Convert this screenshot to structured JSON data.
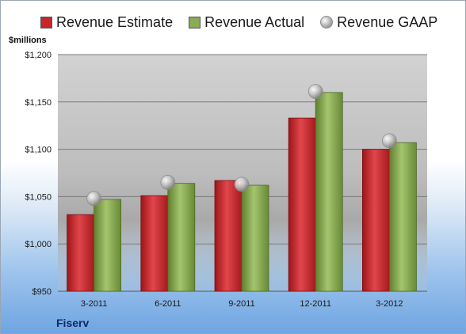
{
  "legend": {
    "estimate": "Revenue Estimate",
    "actual": "Revenue Actual",
    "gaap": "Revenue GAAP"
  },
  "unit_label": "$millions",
  "company": "Fiserv",
  "colors": {
    "estimate": "#c8262b",
    "actual": "#8aac52",
    "gaap": "#b8b8b8",
    "plot_background": "#c9c9c9",
    "axis_text": "#1a1a1a"
  },
  "chart_data": {
    "type": "bar",
    "categories": [
      "3-2011",
      "6-2011",
      "9-2011",
      "12-2011",
      "3-2012"
    ],
    "series": [
      {
        "name": "Revenue Estimate",
        "kind": "bar",
        "values": [
          1031,
          1051,
          1067,
          1133,
          1100
        ]
      },
      {
        "name": "Revenue Actual",
        "kind": "bar",
        "values": [
          1047,
          1064,
          1062,
          1160,
          1107
        ]
      },
      {
        "name": "Revenue GAAP",
        "kind": "marker",
        "values": [
          1048,
          1065,
          1063,
          1161,
          1109
        ]
      }
    ],
    "ylabel": "$millions",
    "ylim": [
      950,
      1200
    ],
    "yticks": [
      950,
      1000,
      1050,
      1100,
      1150,
      1200
    ],
    "ytick_labels": [
      "$950",
      "$1,000",
      "$1,050",
      "$1,100",
      "$1,150",
      "$1,200"
    ],
    "grid": true,
    "legend_position": "top"
  }
}
